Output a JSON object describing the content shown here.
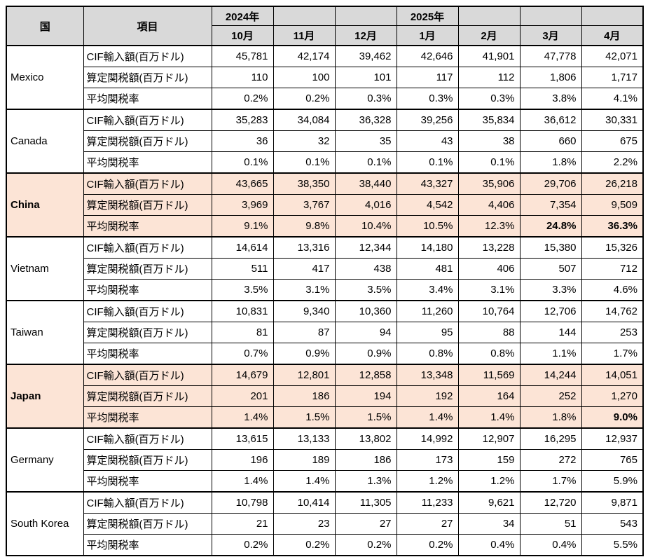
{
  "colors": {
    "header_bg": "#d9d9d9",
    "highlight_bg": "#fce4d6",
    "border": "#000000",
    "text": "#000000"
  },
  "chart_data": {
    "type": "table",
    "header": {
      "country_label": "国",
      "item_label": "項目",
      "year_cells": [
        "2024年",
        "",
        "",
        "2025年",
        "",
        "",
        ""
      ],
      "months": [
        "10月",
        "11月",
        "12月",
        "1月",
        "2月",
        "3月",
        "4月"
      ]
    },
    "row_labels": [
      "CIF輸入額(百万ドル)",
      "算定関税額(百万ドル)",
      "平均関税率"
    ],
    "countries": [
      {
        "name": "Mexico",
        "highlighted": false,
        "rows": [
          {
            "label": "CIF輸入額(百万ドル)",
            "values": [
              "45,781",
              "42,174",
              "39,462",
              "42,646",
              "41,901",
              "47,778",
              "42,071"
            ],
            "bold_indices": []
          },
          {
            "label": "算定関税額(百万ドル)",
            "values": [
              "110",
              "100",
              "101",
              "117",
              "112",
              "1,806",
              "1,717"
            ],
            "bold_indices": []
          },
          {
            "label": "平均関税率",
            "values": [
              "0.2%",
              "0.2%",
              "0.3%",
              "0.3%",
              "0.3%",
              "3.8%",
              "4.1%"
            ],
            "bold_indices": []
          }
        ]
      },
      {
        "name": "Canada",
        "highlighted": false,
        "rows": [
          {
            "label": "CIF輸入額(百万ドル)",
            "values": [
              "35,283",
              "34,084",
              "36,328",
              "39,256",
              "35,834",
              "36,612",
              "30,331"
            ],
            "bold_indices": []
          },
          {
            "label": "算定関税額(百万ドル)",
            "values": [
              "36",
              "32",
              "35",
              "43",
              "38",
              "660",
              "675"
            ],
            "bold_indices": []
          },
          {
            "label": "平均関税率",
            "values": [
              "0.1%",
              "0.1%",
              "0.1%",
              "0.1%",
              "0.1%",
              "1.8%",
              "2.2%"
            ],
            "bold_indices": []
          }
        ]
      },
      {
        "name": "China",
        "highlighted": true,
        "rows": [
          {
            "label": "CIF輸入額(百万ドル)",
            "values": [
              "43,665",
              "38,350",
              "38,440",
              "43,327",
              "35,906",
              "29,706",
              "26,218"
            ],
            "bold_indices": []
          },
          {
            "label": "算定関税額(百万ドル)",
            "values": [
              "3,969",
              "3,767",
              "4,016",
              "4,542",
              "4,406",
              "7,354",
              "9,509"
            ],
            "bold_indices": []
          },
          {
            "label": "平均関税率",
            "values": [
              "9.1%",
              "9.8%",
              "10.4%",
              "10.5%",
              "12.3%",
              "24.8%",
              "36.3%"
            ],
            "bold_indices": [
              5,
              6
            ]
          }
        ]
      },
      {
        "name": "Vietnam",
        "highlighted": false,
        "rows": [
          {
            "label": "CIF輸入額(百万ドル)",
            "values": [
              "14,614",
              "13,316",
              "12,344",
              "14,180",
              "13,228",
              "15,380",
              "15,326"
            ],
            "bold_indices": []
          },
          {
            "label": "算定関税額(百万ドル)",
            "values": [
              "511",
              "417",
              "438",
              "481",
              "406",
              "507",
              "712"
            ],
            "bold_indices": []
          },
          {
            "label": "平均関税率",
            "values": [
              "3.5%",
              "3.1%",
              "3.5%",
              "3.4%",
              "3.1%",
              "3.3%",
              "4.6%"
            ],
            "bold_indices": []
          }
        ]
      },
      {
        "name": "Taiwan",
        "highlighted": false,
        "rows": [
          {
            "label": "CIF輸入額(百万ドル)",
            "values": [
              "10,831",
              "9,340",
              "10,360",
              "11,260",
              "10,764",
              "12,706",
              "14,762"
            ],
            "bold_indices": []
          },
          {
            "label": "算定関税額(百万ドル)",
            "values": [
              "81",
              "87",
              "94",
              "95",
              "88",
              "144",
              "253"
            ],
            "bold_indices": []
          },
          {
            "label": "平均関税率",
            "values": [
              "0.7%",
              "0.9%",
              "0.9%",
              "0.8%",
              "0.8%",
              "1.1%",
              "1.7%"
            ],
            "bold_indices": []
          }
        ]
      },
      {
        "name": "Japan",
        "highlighted": true,
        "rows": [
          {
            "label": "CIF輸入額(百万ドル)",
            "values": [
              "14,679",
              "12,801",
              "12,858",
              "13,348",
              "11,569",
              "14,244",
              "14,051"
            ],
            "bold_indices": []
          },
          {
            "label": "算定関税額(百万ドル)",
            "values": [
              "201",
              "186",
              "194",
              "192",
              "164",
              "252",
              "1,270"
            ],
            "bold_indices": []
          },
          {
            "label": "平均関税率",
            "values": [
              "1.4%",
              "1.5%",
              "1.5%",
              "1.4%",
              "1.4%",
              "1.8%",
              "9.0%"
            ],
            "bold_indices": [
              6
            ]
          }
        ]
      },
      {
        "name": "Germany",
        "highlighted": false,
        "rows": [
          {
            "label": "CIF輸入額(百万ドル)",
            "values": [
              "13,615",
              "13,133",
              "13,802",
              "14,992",
              "12,907",
              "16,295",
              "12,937"
            ],
            "bold_indices": []
          },
          {
            "label": "算定関税額(百万ドル)",
            "values": [
              "196",
              "189",
              "186",
              "173",
              "159",
              "272",
              "765"
            ],
            "bold_indices": []
          },
          {
            "label": "平均関税率",
            "values": [
              "1.4%",
              "1.4%",
              "1.3%",
              "1.2%",
              "1.2%",
              "1.7%",
              "5.9%"
            ],
            "bold_indices": []
          }
        ]
      },
      {
        "name": "South Korea",
        "highlighted": false,
        "rows": [
          {
            "label": "CIF輸入額(百万ドル)",
            "values": [
              "10,798",
              "10,414",
              "11,305",
              "11,233",
              "9,621",
              "12,720",
              "9,871"
            ],
            "bold_indices": []
          },
          {
            "label": "算定関税額(百万ドル)",
            "values": [
              "21",
              "23",
              "27",
              "27",
              "34",
              "51",
              "543"
            ],
            "bold_indices": []
          },
          {
            "label": "平均関税率",
            "values": [
              "0.2%",
              "0.2%",
              "0.2%",
              "0.2%",
              "0.4%",
              "0.4%",
              "5.5%"
            ],
            "bold_indices": []
          }
        ]
      }
    ]
  }
}
